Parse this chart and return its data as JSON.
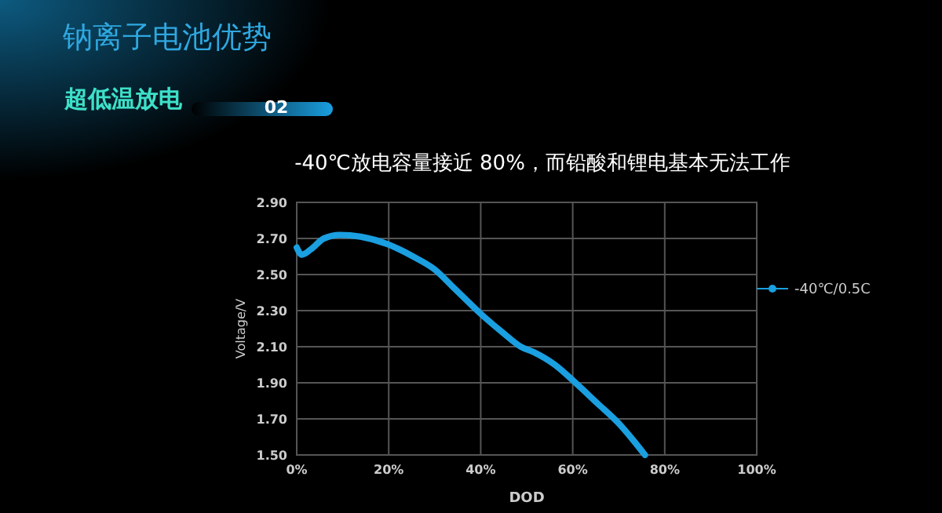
{
  "chart_data": {
    "type": "line",
    "title": "-40℃放电容量接近 80%，而铅酸和锂电基本无法工作",
    "xlabel": "DOD",
    "ylabel": "Voltage/V",
    "annotations": [
      "钠离子电池优势",
      "超低温放电",
      "02"
    ],
    "x": [
      0,
      1.1,
      3.1,
      5.9,
      9.4,
      13.9,
      19.6,
      25.3,
      29.9,
      34.4,
      40.1,
      44.7,
      48.7,
      51.5,
      56.1,
      60.6,
      65.2,
      69.8,
      73.2,
      75.7
    ],
    "series": [
      {
        "name": "-40℃/0.5C",
        "color": "#1a9fe0",
        "values": [
          2.65,
          2.61,
          2.64,
          2.7,
          2.72,
          2.71,
          2.67,
          2.6,
          2.53,
          2.42,
          2.28,
          2.18,
          2.1,
          2.07,
          2.0,
          1.9,
          1.79,
          1.68,
          1.58,
          1.5
        ]
      }
    ],
    "xlim": [
      0,
      100
    ],
    "xticks": [
      {
        "value": 0,
        "label": "0%"
      },
      {
        "value": 20,
        "label": "20%"
      },
      {
        "value": 40,
        "label": "40%"
      },
      {
        "value": 60,
        "label": "60%"
      },
      {
        "value": 80,
        "label": "80%"
      },
      {
        "value": 100,
        "label": "100%"
      }
    ],
    "ylim": [
      1.5,
      2.9
    ],
    "yticks": [
      {
        "value": 1.5,
        "label": "1.50"
      },
      {
        "value": 1.7,
        "label": "1.70"
      },
      {
        "value": 1.9,
        "label": "1.90"
      },
      {
        "value": 2.1,
        "label": "2.10"
      },
      {
        "value": 2.3,
        "label": "2.30"
      },
      {
        "value": 2.5,
        "label": "2.50"
      },
      {
        "value": 2.7,
        "label": "2.70"
      },
      {
        "value": 2.9,
        "label": "2.90"
      }
    ],
    "grid": true,
    "legend": "right",
    "marker": "none",
    "line_style": "solid"
  }
}
